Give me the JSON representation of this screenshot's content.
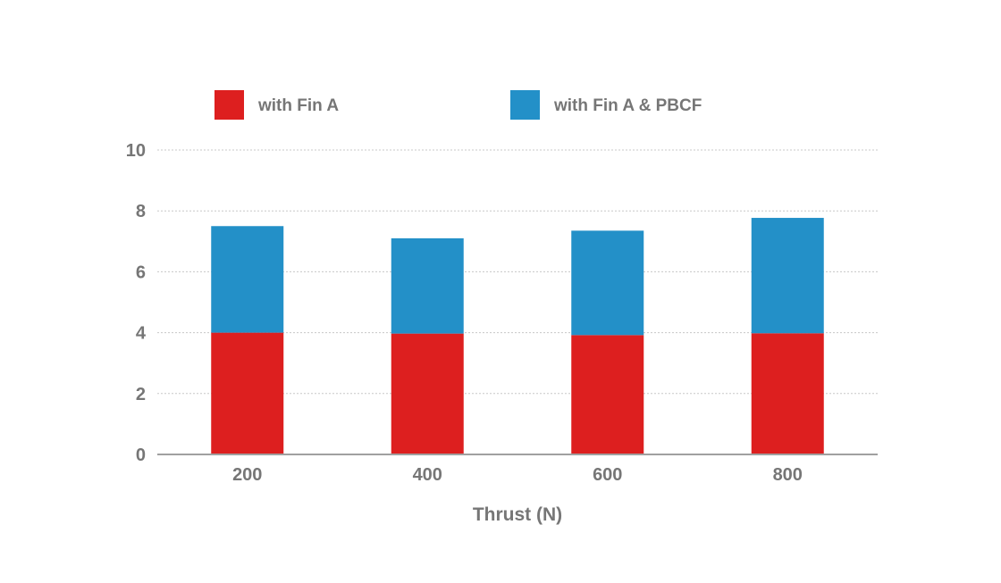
{
  "chart_data": {
    "type": "bar",
    "stacked": true,
    "categories": [
      "200",
      "400",
      "600",
      "800"
    ],
    "series": [
      {
        "name": "with Fin A",
        "values": [
          4.0,
          3.97,
          3.92,
          3.98
        ],
        "color": "#dd1f1f"
      },
      {
        "name": "with Fin A & PBCF",
        "values": [
          3.5,
          3.13,
          3.43,
          3.79
        ],
        "color": "#2390c8"
      }
    ],
    "title": "",
    "xlabel": "Thrust (N)",
    "ylabel": "",
    "ylim": [
      0,
      10
    ],
    "yticks": [
      0,
      2,
      4,
      6,
      8,
      10
    ],
    "grid": true,
    "legend_position": "top"
  }
}
